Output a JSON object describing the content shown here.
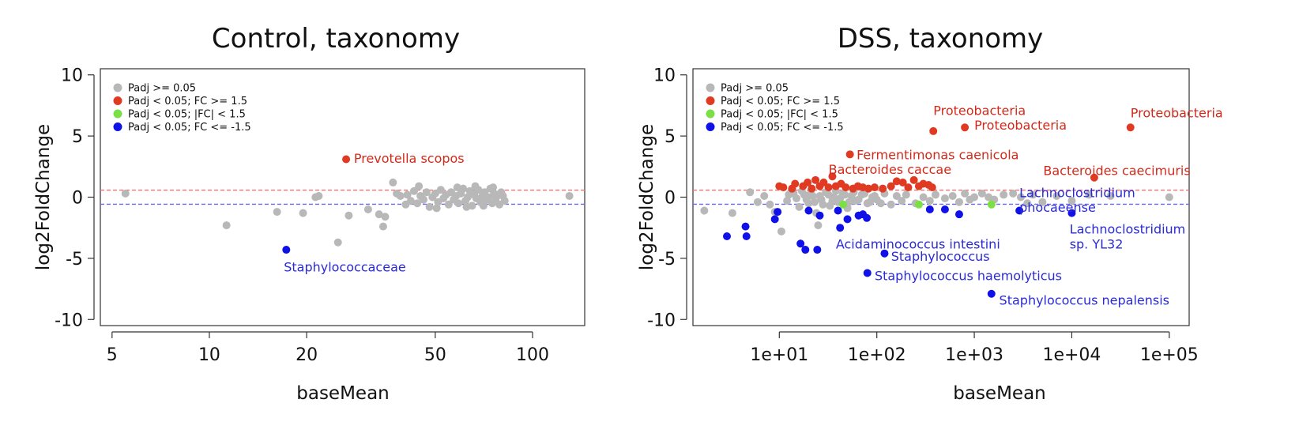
{
  "colors": {
    "grey": "#b8b8b8",
    "red": "#e03a23",
    "green": "#7be045",
    "blue": "#1010e8",
    "up_line": "#f07070",
    "down_line": "#6a6aee",
    "label_red": "#d12a1a",
    "label_blue": "#2a2ad6"
  },
  "legend": {
    "items": [
      {
        "label": "Padj >= 0.05",
        "color": "#b8b8b8"
      },
      {
        "label": "Padj < 0.05; FC >= 1.5",
        "color": "#e03a23"
      },
      {
        "label": "Padj < 0.05; |FC| < 1.5",
        "color": "#7be045"
      },
      {
        "label": "Padj < 0.05; FC <= -1.5",
        "color": "#1010e8"
      }
    ]
  },
  "chart_data": [
    {
      "type": "scatter",
      "title": "Control, taxonomy",
      "xlabel": "baseMean",
      "ylabel": "log2FoldChange",
      "xscale": "log",
      "xlim": [
        4.6,
        145
      ],
      "ylim": [
        -10.5,
        10.5
      ],
      "xticks": [
        5,
        10,
        20,
        50,
        100
      ],
      "xticklabels": [
        "5",
        "10",
        "20",
        "50",
        "100"
      ],
      "yticks": [
        10,
        5,
        0,
        -5,
        -10
      ],
      "yticklabels": [
        "10",
        "5",
        "0",
        "-5",
        "-10"
      ],
      "threshold_lines": [
        0.58,
        -0.58
      ],
      "legend_position": "top-left",
      "grid": false,
      "series": [
        {
          "name": "Padj >= 0.05",
          "color": "grey",
          "points": [
            [
              5.5,
              0.3
            ],
            [
              11.3,
              -2.3
            ],
            [
              16.2,
              -1.2
            ],
            [
              19.5,
              -1.3
            ],
            [
              21.3,
              0.0
            ],
            [
              21.8,
              0.1
            ],
            [
              25.0,
              -3.7
            ],
            [
              27.0,
              -1.5
            ],
            [
              31.0,
              -1.0
            ],
            [
              33.5,
              -1.4
            ],
            [
              34.5,
              -2.4
            ],
            [
              35.0,
              -1.6
            ],
            [
              37.0,
              1.2
            ],
            [
              38.0,
              0.3
            ],
            [
              39.0,
              0.1
            ],
            [
              40.5,
              -0.6
            ],
            [
              41.0,
              0.2
            ],
            [
              42.0,
              -0.3
            ],
            [
              43.0,
              0.5
            ],
            [
              44.0,
              -0.5
            ],
            [
              45.0,
              0.1
            ],
            [
              46.0,
              -0.2
            ],
            [
              47.0,
              0.4
            ],
            [
              48.0,
              -0.8
            ],
            [
              49.0,
              0.0
            ],
            [
              50.0,
              0.3
            ],
            [
              51.0,
              -0.4
            ],
            [
              52.0,
              0.6
            ],
            [
              53.0,
              -0.1
            ],
            [
              54.0,
              0.2
            ],
            [
              55.0,
              -0.6
            ],
            [
              56.0,
              0.4
            ],
            [
              57.0,
              -0.2
            ],
            [
              58.0,
              0.1
            ],
            [
              59.0,
              -0.5
            ],
            [
              60.0,
              0.3
            ],
            [
              61.0,
              0.7
            ],
            [
              62.0,
              -0.3
            ],
            [
              63.0,
              0.0
            ],
            [
              64.0,
              0.5
            ],
            [
              65.0,
              -0.7
            ],
            [
              66.0,
              0.2
            ],
            [
              67.0,
              -0.1
            ],
            [
              68.0,
              0.6
            ],
            [
              69.0,
              -0.4
            ],
            [
              70.0,
              0.1
            ],
            [
              71.0,
              0.4
            ],
            [
              72.0,
              -0.2
            ],
            [
              73.0,
              0.0
            ],
            [
              74.0,
              0.7
            ],
            [
              75.0,
              -0.5
            ],
            [
              76.0,
              0.3
            ],
            [
              77.0,
              -0.1
            ],
            [
              78.0,
              0.2
            ],
            [
              79.0,
              -0.6
            ],
            [
              80.0,
              0.4
            ],
            [
              81.0,
              0.1
            ],
            [
              82.0,
              -0.3
            ],
            [
              44.5,
              0.9
            ],
            [
              58.5,
              0.8
            ],
            [
              66.5,
              0.9
            ],
            [
              75.5,
              0.8
            ],
            [
              50.5,
              -0.9
            ],
            [
              62.5,
              -0.8
            ],
            [
              70.5,
              -0.7
            ],
            [
              130.0,
              0.1
            ]
          ]
        },
        {
          "name": "Padj < 0.05; FC >= 1.5",
          "color": "red",
          "points": [
            [
              26.5,
              3.1
            ]
          ]
        },
        {
          "name": "Padj < 0.05; FC <= -1.5",
          "color": "blue",
          "points": [
            [
              17.3,
              -4.3
            ]
          ]
        }
      ],
      "annotations": [
        {
          "text": "Prevotella scopos",
          "x": 28.0,
          "y": 3.2,
          "color": "label_red"
        },
        {
          "text": "Staphylococcaceae",
          "x": 17.0,
          "y": -5.7,
          "color": "label_blue"
        }
      ]
    },
    {
      "type": "scatter",
      "title": "DSS, taxonomy",
      "xlabel": "baseMean",
      "ylabel": "log2FoldChange",
      "xscale": "log",
      "xlim": [
        1.3,
        160000
      ],
      "ylim": [
        -10.5,
        10.5
      ],
      "xticks": [
        10,
        100,
        1000,
        10000,
        100000
      ],
      "xticklabels": [
        "1e+01",
        "1e+02",
        "1e+03",
        "1e+04",
        "1e+05"
      ],
      "yticks": [
        10,
        5,
        0,
        -5,
        -10
      ],
      "yticklabels": [
        "10",
        "5",
        "0",
        "-5",
        "-10"
      ],
      "threshold_lines": [
        0.58,
        -0.58
      ],
      "legend_position": "top-left",
      "grid": false,
      "series": [
        {
          "name": "Padj >= 0.05",
          "color": "grey",
          "points": [
            [
              1.7,
              -1.1
            ],
            [
              3.3,
              -1.3
            ],
            [
              5.0,
              0.4
            ],
            [
              6.0,
              -0.4
            ],
            [
              7.0,
              0.1
            ],
            [
              8.0,
              -0.6
            ],
            [
              9.0,
              -1.2
            ],
            [
              10.5,
              -2.8
            ],
            [
              12.0,
              -0.3
            ],
            [
              14.0,
              0.3
            ],
            [
              16.0,
              -0.8
            ],
            [
              18.0,
              0.2
            ],
            [
              20.0,
              -0.5
            ],
            [
              22.0,
              0.1
            ],
            [
              24.0,
              -1.3
            ],
            [
              25.0,
              -2.3
            ],
            [
              27.0,
              -0.2
            ],
            [
              30.0,
              0.4
            ],
            [
              33.0,
              -0.7
            ],
            [
              36.0,
              0.0
            ],
            [
              40.0,
              -0.4
            ],
            [
              45.0,
              0.3
            ],
            [
              50.0,
              -0.9
            ],
            [
              55.0,
              0.1
            ],
            [
              60.0,
              -0.3
            ],
            [
              70.0,
              0.2
            ],
            [
              80.0,
              -0.5
            ],
            [
              90.0,
              0.0
            ],
            [
              100.0,
              -0.2
            ],
            [
              120.0,
              0.3
            ],
            [
              140.0,
              -0.6
            ],
            [
              160.0,
              0.1
            ],
            [
              180.0,
              -0.3
            ],
            [
              200.0,
              0.2
            ],
            [
              250.0,
              -0.5
            ],
            [
              300.0,
              0.0
            ],
            [
              350.0,
              -0.3
            ],
            [
              400.0,
              0.2
            ],
            [
              500.0,
              -0.1
            ],
            [
              600.0,
              0.1
            ],
            [
              700.0,
              -0.4
            ],
            [
              800.0,
              0.3
            ],
            [
              900.0,
              -0.2
            ],
            [
              1000.0,
              0.0
            ],
            [
              1200.0,
              0.3
            ],
            [
              1400.0,
              0.0
            ],
            [
              1600.0,
              -0.2
            ],
            [
              2000.0,
              0.2
            ],
            [
              2500.0,
              0.3
            ],
            [
              3000.0,
              0.0
            ],
            [
              3500.0,
              -0.5
            ],
            [
              4000.0,
              0.2
            ],
            [
              5000.0,
              -0.4
            ],
            [
              7000.0,
              0.1
            ],
            [
              10000.0,
              -0.3
            ],
            [
              15000.0,
              0.2
            ],
            [
              25000.0,
              0.1
            ],
            [
              100000.0,
              0.0
            ],
            [
              12.5,
              0.2
            ],
            [
              15.0,
              -0.1
            ],
            [
              17.0,
              0.5
            ],
            [
              19.0,
              -0.2
            ],
            [
              21.0,
              0.3
            ],
            [
              23.0,
              -0.4
            ],
            [
              26.0,
              0.1
            ],
            [
              28.0,
              -0.6
            ],
            [
              32.0,
              0.2
            ],
            [
              35.0,
              -0.3
            ],
            [
              38.0,
              0.5
            ],
            [
              42.0,
              -0.1
            ],
            [
              47.0,
              0.2
            ],
            [
              52.0,
              -0.4
            ],
            [
              58.0,
              0.4
            ],
            [
              65.0,
              -0.2
            ],
            [
              75.0,
              0.3
            ],
            [
              85.0,
              -0.4
            ],
            [
              95.0,
              0.1
            ],
            [
              110.0,
              -0.5
            ]
          ]
        },
        {
          "name": "Padj < 0.05; FC >= 1.5",
          "color": "red",
          "points": [
            [
              10.0,
              0.9
            ],
            [
              11.0,
              0.8
            ],
            [
              13.5,
              0.7
            ],
            [
              14.5,
              1.1
            ],
            [
              17.5,
              0.9
            ],
            [
              19.5,
              1.2
            ],
            [
              21.5,
              0.7
            ],
            [
              23.5,
              1.4
            ],
            [
              26.0,
              0.9
            ],
            [
              28.5,
              1.2
            ],
            [
              32.0,
              0.8
            ],
            [
              35.0,
              1.7
            ],
            [
              38.0,
              0.9
            ],
            [
              43.0,
              1.1
            ],
            [
              48.0,
              0.8
            ],
            [
              53.0,
              3.5
            ],
            [
              57.0,
              0.7
            ],
            [
              64.0,
              0.9
            ],
            [
              72.0,
              0.8
            ],
            [
              82.0,
              0.7
            ],
            [
              95.0,
              0.8
            ],
            [
              115.0,
              0.7
            ],
            [
              140.0,
              0.9
            ],
            [
              160.0,
              1.3
            ],
            [
              185.0,
              1.2
            ],
            [
              210.0,
              0.8
            ],
            [
              240.0,
              1.4
            ],
            [
              270.0,
              0.9
            ],
            [
              300.0,
              1.1
            ],
            [
              340.0,
              1.0
            ],
            [
              370.0,
              0.8
            ],
            [
              380.0,
              5.4
            ],
            [
              800.0,
              5.7
            ],
            [
              17000.0,
              1.6
            ],
            [
              40000.0,
              5.7
            ]
          ]
        },
        {
          "name": "Padj < 0.05; |FC| < 1.5",
          "color": "green",
          "points": [
            [
              45.0,
              -0.6
            ],
            [
              270.0,
              -0.6
            ],
            [
              1500.0,
              -0.6
            ]
          ]
        },
        {
          "name": "Padj < 0.05; FC <= -1.5",
          "color": "blue",
          "points": [
            [
              2.9,
              -3.2
            ],
            [
              4.5,
              -2.4
            ],
            [
              4.6,
              -3.2
            ],
            [
              9.0,
              -1.8
            ],
            [
              9.6,
              -1.2
            ],
            [
              16.5,
              -3.8
            ],
            [
              18.5,
              -4.3
            ],
            [
              20.0,
              -1.1
            ],
            [
              24.5,
              -4.3
            ],
            [
              26.0,
              -1.5
            ],
            [
              40.0,
              -1.1
            ],
            [
              42.0,
              -2.5
            ],
            [
              50.0,
              -1.8
            ],
            [
              65.0,
              -1.5
            ],
            [
              72.0,
              -1.4
            ],
            [
              79.0,
              -1.7
            ],
            [
              80.0,
              -6.2
            ],
            [
              120.0,
              -4.6
            ],
            [
              350.0,
              -1.0
            ],
            [
              500.0,
              -1.0
            ],
            [
              700.0,
              -1.4
            ],
            [
              1500.0,
              -7.9
            ],
            [
              2900.0,
              -1.1
            ],
            [
              10000.0,
              -1.3
            ]
          ]
        }
      ],
      "annotations": [
        {
          "text": "Proteobacteria",
          "x": 380.0,
          "y": 7.1,
          "color": "label_red"
        },
        {
          "text": "Proteobacteria",
          "x": 1000.0,
          "y": 5.9,
          "color": "label_red"
        },
        {
          "text": "Proteobacteria",
          "x": 40000.0,
          "y": 6.9,
          "color": "label_red"
        },
        {
          "text": "Fermentimonas caenicola",
          "x": 62.0,
          "y": 3.5,
          "color": "label_red"
        },
        {
          "text": "Bacteroides caccae",
          "x": 32.0,
          "y": 2.3,
          "color": "label_red"
        },
        {
          "text": "Bacteroides caecimuris",
          "x": 5100.0,
          "y": 2.2,
          "color": "label_red"
        },
        {
          "text": "Lachnoclostridium",
          "x": 2900.0,
          "y": 0.4,
          "color": "label_blue"
        },
        {
          "text": "phocaeense",
          "x": 2900.0,
          "y": -0.8,
          "color": "label_blue"
        },
        {
          "text": "Lachnoclostridium",
          "x": 9500.0,
          "y": -2.6,
          "color": "label_blue"
        },
        {
          "text": "sp. YL32",
          "x": 9500.0,
          "y": -3.8,
          "color": "label_blue"
        },
        {
          "text": "Acidaminococcus intestini",
          "x": 38.0,
          "y": -3.8,
          "color": "label_blue"
        },
        {
          "text": "Staphylococcus",
          "x": 140.0,
          "y": -4.8,
          "color": "label_blue"
        },
        {
          "text": "Staphylococcus haemolyticus",
          "x": 95.0,
          "y": -6.4,
          "color": "label_blue"
        },
        {
          "text": "Staphylococcus nepalensis",
          "x": 1800.0,
          "y": -8.4,
          "color": "label_blue"
        }
      ]
    }
  ]
}
